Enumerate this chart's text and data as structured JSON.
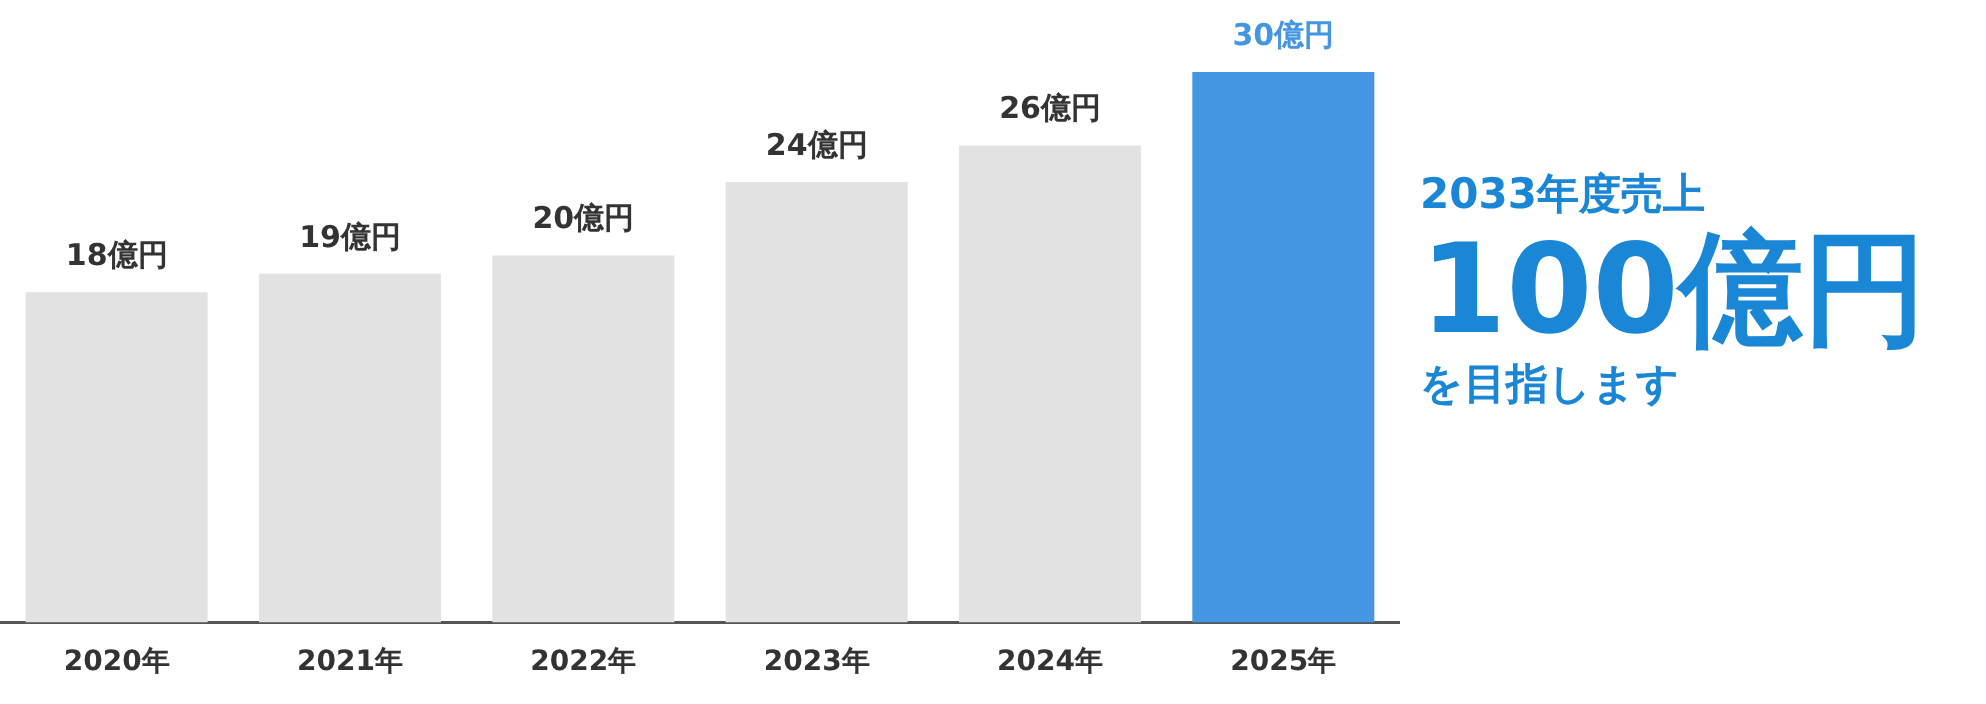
{
  "chart_data": {
    "type": "bar",
    "categories": [
      "2020年",
      "2021年",
      "2022年",
      "2023年",
      "2024年",
      "2025年"
    ],
    "values": [
      18,
      19,
      20,
      24,
      26,
      30
    ],
    "colors": [
      "#e2e2e2",
      "#e2e2e2",
      "#e2e2e2",
      "#e2e2e2",
      "#e2e2e2",
      "#4496e2"
    ],
    "value_labels": [
      "18億円",
      "19億円",
      "20億円",
      "24億円",
      "26億円",
      "30億円"
    ],
    "annotations": [
      "2033年度売上",
      "100億円",
      "を目指します"
    ],
    "grid": false,
    "legend": false
  }
}
